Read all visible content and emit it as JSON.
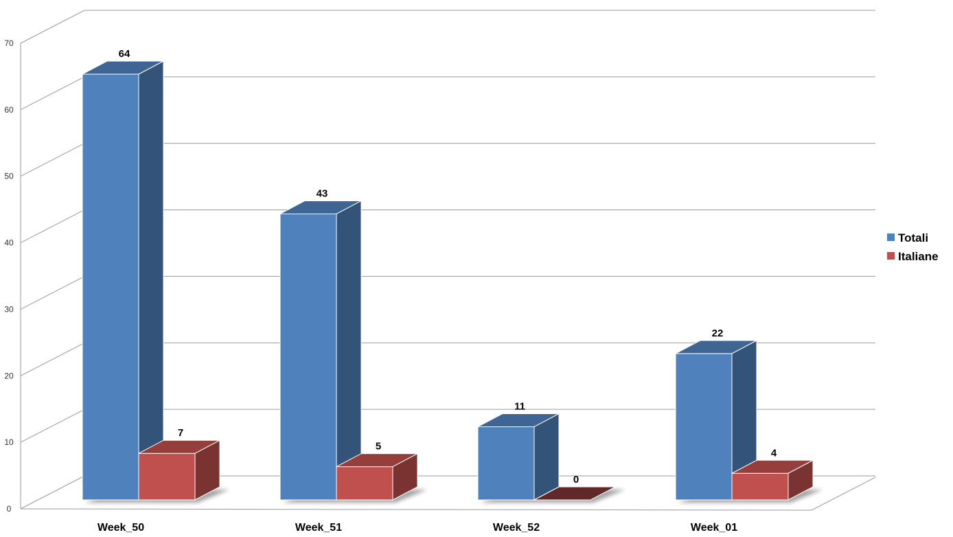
{
  "chart_data": {
    "type": "bar",
    "categories": [
      "Week_50",
      "Week_51",
      "Week_52",
      "Week_01"
    ],
    "series": [
      {
        "name": "Totali",
        "values": [
          64,
          43,
          11,
          22
        ],
        "color": "#4F81BD"
      },
      {
        "name": "Italiane",
        "values": [
          7,
          5,
          0,
          4
        ],
        "color": "#C0504D"
      }
    ],
    "y_ticks": [
      "0",
      "10",
      "20",
      "30",
      "40",
      "50",
      "60",
      "70"
    ],
    "ylim": [
      0,
      70
    ],
    "grid": true,
    "legend": "right",
    "style": "3d-clustered-column"
  }
}
